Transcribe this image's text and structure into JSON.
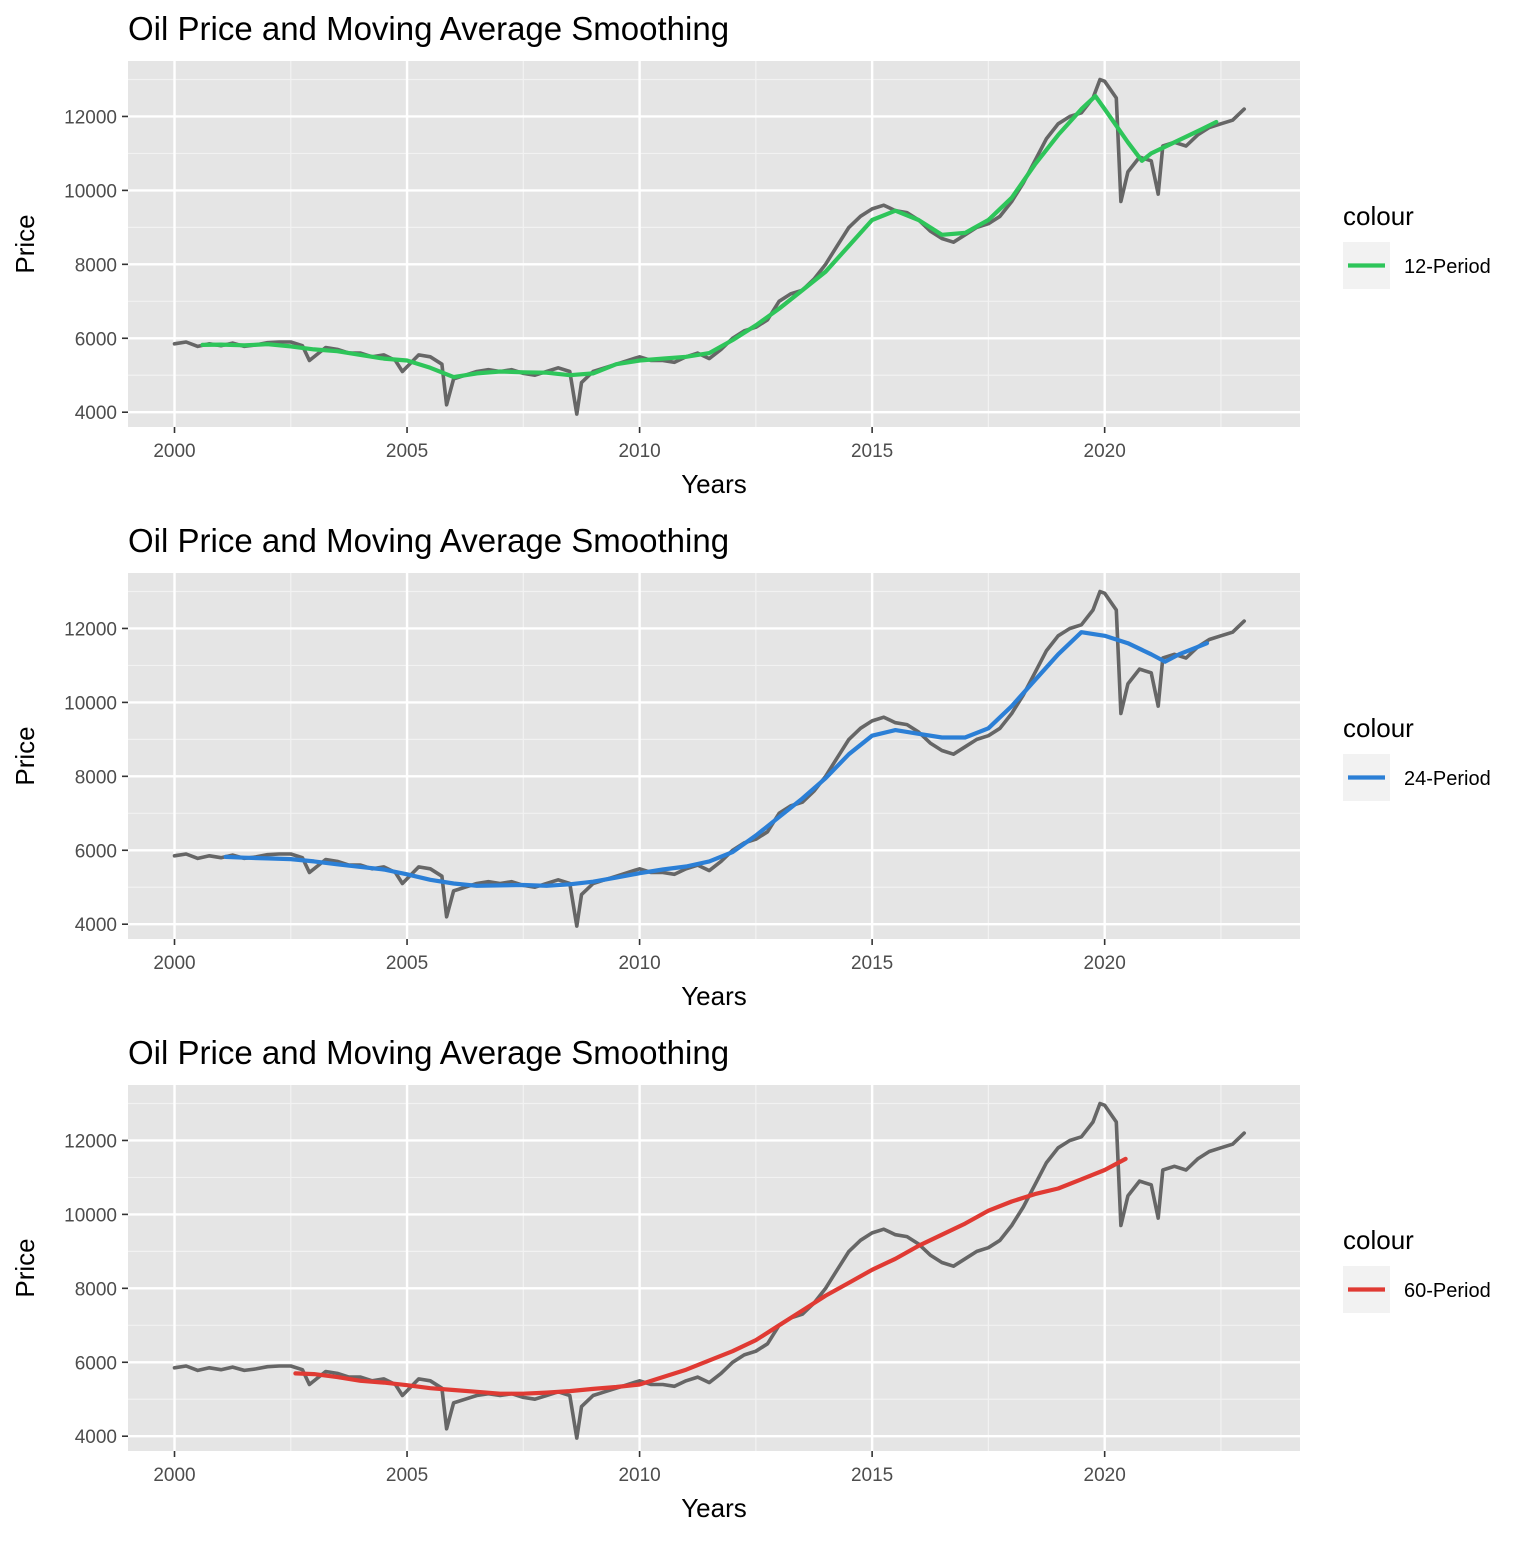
{
  "chart_data": [
    {
      "type": "line",
      "title": "Oil Price and Moving Average Smoothing",
      "xlabel": "Years",
      "ylabel": "Price",
      "xlim": [
        1999.0,
        2024.2
      ],
      "ylim": [
        3600,
        13500
      ],
      "x_ticks": [
        2000,
        2005,
        2010,
        2015,
        2020
      ],
      "x_tick_labels": [
        "2000",
        "2005",
        "2010",
        "2015",
        "2020"
      ],
      "y_ticks": [
        4000,
        6000,
        8000,
        10000,
        12000
      ],
      "y_tick_labels": [
        "4000",
        "6000",
        "8000",
        "10000",
        "12000"
      ],
      "grid": true,
      "legend": {
        "title": "colour",
        "position": "right",
        "label": "12-Period",
        "color": "#2ec55a"
      },
      "series": [
        {
          "role": "price",
          "color": "#666666",
          "x": [
            2000.0,
            2000.25,
            2000.5,
            2000.75,
            2001.0,
            2001.25,
            2001.5,
            2001.75,
            2002.0,
            2002.25,
            2002.5,
            2002.75,
            2002.9,
            2003.25,
            2003.5,
            2003.75,
            2004.0,
            2004.25,
            2004.5,
            2004.75,
            2004.9,
            2005.25,
            2005.5,
            2005.75,
            2005.85,
            2006.0,
            2006.25,
            2006.5,
            2006.75,
            2007.0,
            2007.25,
            2007.5,
            2007.75,
            2008.0,
            2008.25,
            2008.5,
            2008.65,
            2008.75,
            2009.0,
            2009.25,
            2009.5,
            2009.75,
            2010.0,
            2010.25,
            2010.5,
            2010.75,
            2011.0,
            2011.25,
            2011.5,
            2011.75,
            2012.0,
            2012.25,
            2012.5,
            2012.75,
            2013.0,
            2013.25,
            2013.5,
            2013.75,
            2014.0,
            2014.25,
            2014.5,
            2014.75,
            2015.0,
            2015.25,
            2015.5,
            2015.75,
            2016.0,
            2016.25,
            2016.5,
            2016.75,
            2017.0,
            2017.25,
            2017.5,
            2017.75,
            2018.0,
            2018.25,
            2018.5,
            2018.75,
            2019.0,
            2019.25,
            2019.5,
            2019.75,
            2019.9,
            2020.0,
            2020.25,
            2020.35,
            2020.5,
            2020.75,
            2021.0,
            2021.15,
            2021.25,
            2021.5,
            2021.75,
            2022.0,
            2022.25,
            2022.5,
            2022.75,
            2023.0
          ],
          "y": [
            5850,
            5900,
            5780,
            5850,
            5800,
            5870,
            5780,
            5820,
            5880,
            5900,
            5900,
            5800,
            5400,
            5750,
            5700,
            5600,
            5600,
            5500,
            5550,
            5400,
            5100,
            5550,
            5500,
            5300,
            4200,
            4900,
            5000,
            5100,
            5150,
            5100,
            5150,
            5050,
            5000,
            5100,
            5200,
            5100,
            3950,
            4800,
            5100,
            5200,
            5300,
            5400,
            5500,
            5400,
            5400,
            5350,
            5500,
            5600,
            5450,
            5700,
            6000,
            6200,
            6300,
            6500,
            7000,
            7200,
            7300,
            7600,
            8000,
            8500,
            9000,
            9300,
            9500,
            9600,
            9450,
            9400,
            9200,
            8900,
            8700,
            8600,
            8800,
            9000,
            9100,
            9300,
            9700,
            10200,
            10800,
            11400,
            11800,
            12000,
            12100,
            12500,
            13000,
            12950,
            12500,
            9700,
            10500,
            10900,
            10800,
            9900,
            11200,
            11300,
            11200,
            11500,
            11700,
            11800,
            11900,
            12200
          ]
        },
        {
          "role": "moving-average",
          "name": "12-Period",
          "color": "#2ec55a",
          "x": [
            2000.6,
            2001.0,
            2001.5,
            2002.0,
            2002.5,
            2003.0,
            2003.5,
            2004.0,
            2004.5,
            2005.0,
            2005.5,
            2006.0,
            2006.5,
            2007.0,
            2007.5,
            2008.0,
            2008.5,
            2009.0,
            2009.5,
            2010.0,
            2010.5,
            2011.0,
            2011.5,
            2012.0,
            2012.5,
            2013.0,
            2013.5,
            2014.0,
            2014.5,
            2015.0,
            2015.5,
            2016.0,
            2016.5,
            2017.0,
            2017.5,
            2018.0,
            2018.5,
            2019.0,
            2019.5,
            2019.8,
            2020.0,
            2020.5,
            2020.8,
            2021.0,
            2021.5,
            2022.0,
            2022.4
          ],
          "y": [
            5820,
            5830,
            5810,
            5840,
            5780,
            5700,
            5650,
            5550,
            5450,
            5400,
            5200,
            4950,
            5050,
            5100,
            5080,
            5070,
            5000,
            5050,
            5300,
            5400,
            5450,
            5500,
            5600,
            5950,
            6350,
            6800,
            7300,
            7800,
            8500,
            9200,
            9450,
            9200,
            8800,
            8850,
            9200,
            9800,
            10700,
            11500,
            12200,
            12550,
            12200,
            11300,
            10800,
            11000,
            11300,
            11600,
            11850
          ]
        }
      ]
    },
    {
      "type": "line",
      "title": "Oil Price and Moving Average Smoothing",
      "xlabel": "Years",
      "ylabel": "Price",
      "xlim": [
        1999.0,
        2024.2
      ],
      "ylim": [
        3600,
        13500
      ],
      "x_ticks": [
        2000,
        2005,
        2010,
        2015,
        2020
      ],
      "x_tick_labels": [
        "2000",
        "2005",
        "2010",
        "2015",
        "2020"
      ],
      "y_ticks": [
        4000,
        6000,
        8000,
        10000,
        12000
      ],
      "y_tick_labels": [
        "4000",
        "6000",
        "8000",
        "10000",
        "12000"
      ],
      "grid": true,
      "legend": {
        "title": "colour",
        "position": "right",
        "label": "24-Period",
        "color": "#2b7fd6"
      },
      "series": [
        {
          "role": "price",
          "color": "#666666",
          "x": [
            2000.0,
            2000.25,
            2000.5,
            2000.75,
            2001.0,
            2001.25,
            2001.5,
            2001.75,
            2002.0,
            2002.25,
            2002.5,
            2002.75,
            2002.9,
            2003.25,
            2003.5,
            2003.75,
            2004.0,
            2004.25,
            2004.5,
            2004.75,
            2004.9,
            2005.25,
            2005.5,
            2005.75,
            2005.85,
            2006.0,
            2006.25,
            2006.5,
            2006.75,
            2007.0,
            2007.25,
            2007.5,
            2007.75,
            2008.0,
            2008.25,
            2008.5,
            2008.65,
            2008.75,
            2009.0,
            2009.25,
            2009.5,
            2009.75,
            2010.0,
            2010.25,
            2010.5,
            2010.75,
            2011.0,
            2011.25,
            2011.5,
            2011.75,
            2012.0,
            2012.25,
            2012.5,
            2012.75,
            2013.0,
            2013.25,
            2013.5,
            2013.75,
            2014.0,
            2014.25,
            2014.5,
            2014.75,
            2015.0,
            2015.25,
            2015.5,
            2015.75,
            2016.0,
            2016.25,
            2016.5,
            2016.75,
            2017.0,
            2017.25,
            2017.5,
            2017.75,
            2018.0,
            2018.25,
            2018.5,
            2018.75,
            2019.0,
            2019.25,
            2019.5,
            2019.75,
            2019.9,
            2020.0,
            2020.25,
            2020.35,
            2020.5,
            2020.75,
            2021.0,
            2021.15,
            2021.25,
            2021.5,
            2021.75,
            2022.0,
            2022.25,
            2022.5,
            2022.75,
            2023.0
          ],
          "y": [
            5850,
            5900,
            5780,
            5850,
            5800,
            5870,
            5780,
            5820,
            5880,
            5900,
            5900,
            5800,
            5400,
            5750,
            5700,
            5600,
            5600,
            5500,
            5550,
            5400,
            5100,
            5550,
            5500,
            5300,
            4200,
            4900,
            5000,
            5100,
            5150,
            5100,
            5150,
            5050,
            5000,
            5100,
            5200,
            5100,
            3950,
            4800,
            5100,
            5200,
            5300,
            5400,
            5500,
            5400,
            5400,
            5350,
            5500,
            5600,
            5450,
            5700,
            6000,
            6200,
            6300,
            6500,
            7000,
            7200,
            7300,
            7600,
            8000,
            8500,
            9000,
            9300,
            9500,
            9600,
            9450,
            9400,
            9200,
            8900,
            8700,
            8600,
            8800,
            9000,
            9100,
            9300,
            9700,
            10200,
            10800,
            11400,
            11800,
            12000,
            12100,
            12500,
            13000,
            12950,
            12500,
            9700,
            10500,
            10900,
            10800,
            9900,
            11200,
            11300,
            11200,
            11500,
            11700,
            11800,
            11900,
            12200
          ]
        },
        {
          "role": "moving-average",
          "name": "24-Period",
          "color": "#2b7fd6",
          "x": [
            2001.1,
            2001.5,
            2002.0,
            2002.5,
            2003.0,
            2003.5,
            2004.0,
            2004.5,
            2005.0,
            2005.5,
            2006.0,
            2006.5,
            2007.0,
            2007.5,
            2008.0,
            2008.5,
            2009.0,
            2009.5,
            2010.0,
            2010.5,
            2011.0,
            2011.5,
            2012.0,
            2012.5,
            2013.0,
            2013.5,
            2014.0,
            2014.5,
            2015.0,
            2015.5,
            2016.0,
            2016.5,
            2017.0,
            2017.5,
            2018.0,
            2018.5,
            2019.0,
            2019.5,
            2020.0,
            2020.5,
            2021.0,
            2021.3,
            2021.6,
            2022.0,
            2022.2
          ],
          "y": [
            5820,
            5800,
            5780,
            5760,
            5700,
            5620,
            5550,
            5480,
            5350,
            5200,
            5100,
            5040,
            5050,
            5060,
            5040,
            5080,
            5150,
            5260,
            5380,
            5480,
            5560,
            5700,
            5950,
            6400,
            6900,
            7400,
            7950,
            8600,
            9100,
            9250,
            9150,
            9050,
            9050,
            9300,
            9900,
            10600,
            11300,
            11900,
            11800,
            11600,
            11300,
            11100,
            11300,
            11500,
            11600
          ]
        }
      ]
    },
    {
      "type": "line",
      "title": "Oil Price and Moving Average Smoothing",
      "xlabel": "Years",
      "ylabel": "Price",
      "xlim": [
        1999.0,
        2024.2
      ],
      "ylim": [
        3600,
        13500
      ],
      "x_ticks": [
        2000,
        2005,
        2010,
        2015,
        2020
      ],
      "x_tick_labels": [
        "2000",
        "2005",
        "2010",
        "2015",
        "2020"
      ],
      "y_ticks": [
        4000,
        6000,
        8000,
        10000,
        12000
      ],
      "y_tick_labels": [
        "4000",
        "6000",
        "8000",
        "10000",
        "12000"
      ],
      "grid": true,
      "legend": {
        "title": "colour",
        "position": "right",
        "label": "60-Period",
        "color": "#e03a33"
      },
      "series": [
        {
          "role": "price",
          "color": "#666666",
          "x": [
            2000.0,
            2000.25,
            2000.5,
            2000.75,
            2001.0,
            2001.25,
            2001.5,
            2001.75,
            2002.0,
            2002.25,
            2002.5,
            2002.75,
            2002.9,
            2003.25,
            2003.5,
            2003.75,
            2004.0,
            2004.25,
            2004.5,
            2004.75,
            2004.9,
            2005.25,
            2005.5,
            2005.75,
            2005.85,
            2006.0,
            2006.25,
            2006.5,
            2006.75,
            2007.0,
            2007.25,
            2007.5,
            2007.75,
            2008.0,
            2008.25,
            2008.5,
            2008.65,
            2008.75,
            2009.0,
            2009.25,
            2009.5,
            2009.75,
            2010.0,
            2010.25,
            2010.5,
            2010.75,
            2011.0,
            2011.25,
            2011.5,
            2011.75,
            2012.0,
            2012.25,
            2012.5,
            2012.75,
            2013.0,
            2013.25,
            2013.5,
            2013.75,
            2014.0,
            2014.25,
            2014.5,
            2014.75,
            2015.0,
            2015.25,
            2015.5,
            2015.75,
            2016.0,
            2016.25,
            2016.5,
            2016.75,
            2017.0,
            2017.25,
            2017.5,
            2017.75,
            2018.0,
            2018.25,
            2018.5,
            2018.75,
            2019.0,
            2019.25,
            2019.5,
            2019.75,
            2019.9,
            2020.0,
            2020.25,
            2020.35,
            2020.5,
            2020.75,
            2021.0,
            2021.15,
            2021.25,
            2021.5,
            2021.75,
            2022.0,
            2022.25,
            2022.5,
            2022.75,
            2023.0
          ],
          "y": [
            5850,
            5900,
            5780,
            5850,
            5800,
            5870,
            5780,
            5820,
            5880,
            5900,
            5900,
            5800,
            5400,
            5750,
            5700,
            5600,
            5600,
            5500,
            5550,
            5400,
            5100,
            5550,
            5500,
            5300,
            4200,
            4900,
            5000,
            5100,
            5150,
            5100,
            5150,
            5050,
            5000,
            5100,
            5200,
            5100,
            3950,
            4800,
            5100,
            5200,
            5300,
            5400,
            5500,
            5400,
            5400,
            5350,
            5500,
            5600,
            5450,
            5700,
            6000,
            6200,
            6300,
            6500,
            7000,
            7200,
            7300,
            7600,
            8000,
            8500,
            9000,
            9300,
            9500,
            9600,
            9450,
            9400,
            9200,
            8900,
            8700,
            8600,
            8800,
            9000,
            9100,
            9300,
            9700,
            10200,
            10800,
            11400,
            11800,
            12000,
            12100,
            12500,
            13000,
            12950,
            12500,
            9700,
            10500,
            10900,
            10800,
            9900,
            11200,
            11300,
            11200,
            11500,
            11700,
            11800,
            11900,
            12200
          ]
        },
        {
          "role": "moving-average",
          "name": "60-Period",
          "color": "#e03a33",
          "x": [
            2002.6,
            2003.0,
            2003.5,
            2004.0,
            2004.5,
            2005.0,
            2005.5,
            2006.0,
            2006.5,
            2007.0,
            2007.5,
            2008.0,
            2008.5,
            2009.0,
            2009.5,
            2010.0,
            2010.5,
            2011.0,
            2011.5,
            2012.0,
            2012.5,
            2013.0,
            2013.5,
            2014.0,
            2014.5,
            2015.0,
            2015.5,
            2016.0,
            2016.5,
            2017.0,
            2017.5,
            2018.0,
            2018.5,
            2019.0,
            2019.5,
            2020.0,
            2020.45
          ],
          "y": [
            5700,
            5680,
            5600,
            5500,
            5450,
            5380,
            5300,
            5250,
            5200,
            5150,
            5150,
            5180,
            5220,
            5280,
            5330,
            5400,
            5600,
            5800,
            6050,
            6300,
            6600,
            7000,
            7400,
            7800,
            8150,
            8500,
            8800,
            9150,
            9450,
            9750,
            10100,
            10350,
            10550,
            10700,
            10950,
            11200,
            11500
          ]
        }
      ]
    }
  ]
}
